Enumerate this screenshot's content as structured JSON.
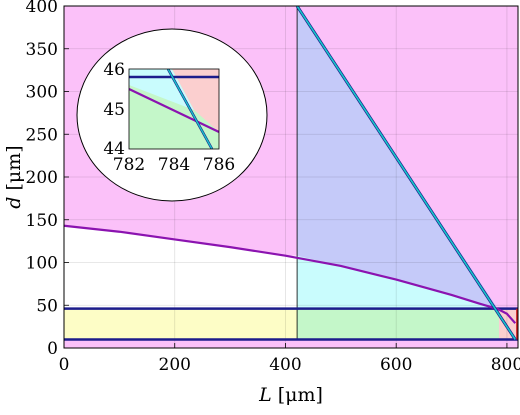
{
  "chart_data": {
    "type": "area",
    "xlabel": {
      "var": "L",
      "unit": "[μm]"
    },
    "ylabel": {
      "var": "d",
      "unit": "[μm]"
    },
    "xlim": [
      0,
      820
    ],
    "ylim": [
      0,
      400
    ],
    "grid": true,
    "x_ticks": [
      "0",
      "200",
      "400",
      "600",
      "800"
    ],
    "y_ticks": [
      "0",
      "50",
      "100",
      "150",
      "200",
      "250",
      "300",
      "350",
      "400"
    ],
    "colors": {
      "magenta_region": "#fbc1f9",
      "yellow_region": "#fdfdc6",
      "cyan_region": "#c9fcfd",
      "green_region": "#c4f7c9",
      "blue_region": "#c5caf9",
      "red_region": "#fbcfcf",
      "purple_curve": "#8b13b0",
      "navy_lines": "#1c1c8c",
      "cyan_line": "#16c8c8",
      "frame": "#000000"
    },
    "regions": [
      {
        "name": "yellow",
        "x_range": [
          0,
          421
        ],
        "y_range": [
          10,
          46
        ]
      },
      {
        "name": "green",
        "x_range": [
          421,
          786
        ],
        "y_range": [
          10,
          46
        ]
      },
      {
        "name": "red",
        "x_range": [
          786,
          820
        ],
        "y_range": [
          10,
          46
        ]
      }
    ],
    "vertical_line_x": 421,
    "horizontal_lines_y": [
      10,
      46
    ],
    "diagonal_line": [
      [
        421,
        400
      ],
      [
        815,
        10
      ]
    ],
    "purple_curve": {
      "x": [
        0,
        100,
        200,
        300,
        400,
        500,
        600,
        700,
        750,
        784,
        800,
        815
      ],
      "y": [
        143,
        136,
        127,
        118,
        108,
        96,
        80,
        62,
        52,
        45.5,
        40,
        29
      ]
    },
    "inset": {
      "x_ticks": [
        "782",
        "784",
        "786"
      ],
      "y_ticks": [
        "44",
        "45",
        "46"
      ],
      "xlim": [
        782,
        786
      ],
      "ylim": [
        44,
        46
      ]
    }
  }
}
